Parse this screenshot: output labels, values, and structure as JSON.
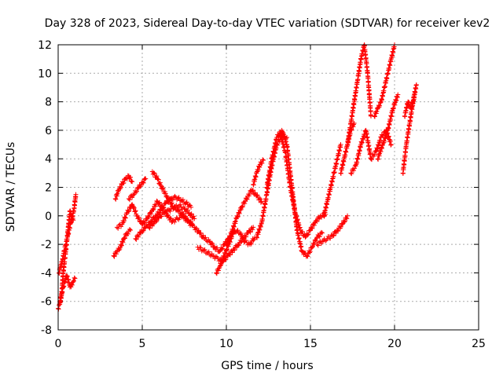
{
  "chart_data": {
    "type": "scatter",
    "title": "Day 328 of 2023, Sidereal Day-to-day VTEC variation (SDTVAR) for receiver kev2",
    "xlabel": "GPS time / hours",
    "ylabel": "SDTVAR / TECUs",
    "xlim": [
      0,
      25
    ],
    "ylim": [
      -8,
      12
    ],
    "xticks": [
      0,
      5,
      10,
      15,
      20,
      25
    ],
    "yticks": [
      -8,
      -6,
      -4,
      -2,
      0,
      2,
      4,
      6,
      8,
      10,
      12
    ],
    "xtick_labels": [
      "0",
      "5",
      "10",
      "15",
      "20",
      "25"
    ],
    "ytick_labels": [
      "-8",
      "-6",
      "-4",
      "-2",
      "0",
      "2",
      "4",
      "6",
      "8",
      "10",
      "12"
    ],
    "grid": true,
    "marker": "+",
    "series": [
      {
        "name": "kev2",
        "color": "#ff0000",
        "tracks": [
          {
            "x": [
              0.0,
              0.1,
              0.2,
              0.3,
              0.4,
              0.5,
              0.6,
              0.7,
              0.8,
              0.9,
              1.0
            ],
            "y": [
              -6.5,
              -6.2,
              -5.5,
              -5.0,
              -4.6,
              -4.2,
              -4.5,
              -5.0,
              -4.8,
              -4.6,
              -4.4
            ]
          },
          {
            "x": [
              0.05,
              0.15,
              0.25,
              0.35,
              0.45,
              0.55,
              0.65,
              0.75,
              0.85,
              0.95,
              1.05
            ],
            "y": [
              -4.0,
              -3.5,
              -3.2,
              -2.5,
              -2.0,
              -1.5,
              -1.0,
              -0.5,
              0.0,
              0.5,
              1.5
            ]
          },
          {
            "x": [
              0.1,
              0.2,
              0.3,
              0.4,
              0.5,
              0.6,
              0.7,
              0.8,
              0.9
            ],
            "y": [
              -6.0,
              -5.6,
              -4.0,
              -3.0,
              -2.0,
              -0.8,
              0.3,
              0.0,
              -0.3
            ]
          },
          {
            "x": [
              3.3,
              3.5,
              3.7,
              3.9,
              4.1,
              4.3
            ],
            "y": [
              -2.8,
              -2.5,
              -2.2,
              -1.6,
              -1.2,
              -1.0
            ]
          },
          {
            "x": [
              3.4,
              3.6,
              3.8,
              4.0,
              4.2,
              4.4
            ],
            "y": [
              1.2,
              1.8,
              2.2,
              2.6,
              2.8,
              2.4
            ]
          },
          {
            "x": [
              3.5,
              3.8,
              4.1,
              4.4,
              4.7,
              5.0,
              5.3,
              5.6,
              5.9,
              6.2,
              6.5,
              6.8,
              7.1,
              7.4,
              7.7,
              8.0
            ],
            "y": [
              -0.8,
              -0.6,
              0.2,
              0.8,
              0.0,
              -0.6,
              -0.2,
              0.4,
              1.0,
              0.6,
              0.0,
              -0.4,
              -0.2,
              0.0,
              -0.4,
              -0.7
            ]
          },
          {
            "x": [
              4.6,
              4.9,
              5.2,
              5.5,
              5.8,
              6.1,
              6.4,
              6.7,
              7.0,
              7.3,
              7.6,
              7.9
            ],
            "y": [
              -1.6,
              -1.2,
              -0.8,
              -0.4,
              0.0,
              0.4,
              0.9,
              1.2,
              1.3,
              1.1,
              0.9,
              0.6
            ]
          },
          {
            "x": [
              4.2,
              4.5,
              4.8,
              5.0,
              5.2
            ],
            "y": [
              1.2,
              1.5,
              2.0,
              2.3,
              2.6
            ]
          },
          {
            "x": [
              5.6,
              5.9,
              6.2,
              6.5,
              6.8,
              7.1,
              7.4,
              7.7,
              8.0
            ],
            "y": [
              3.1,
              2.6,
              1.9,
              1.3,
              0.7,
              0.4,
              0.1,
              -0.3,
              -0.6
            ]
          },
          {
            "x": [
              5.4,
              5.7,
              6.0,
              6.3,
              6.6,
              6.9,
              7.2,
              7.5,
              7.8,
              8.1
            ],
            "y": [
              -0.8,
              -0.5,
              -0.1,
              0.2,
              0.4,
              0.6,
              0.7,
              0.5,
              0.2,
              -0.2
            ]
          },
          {
            "x": [
              8.1,
              8.4,
              8.7,
              9.0,
              9.3,
              9.6,
              9.9,
              10.2,
              10.5,
              10.8,
              11.1,
              11.4,
              11.7
            ],
            "y": [
              -0.8,
              -1.2,
              -1.6,
              -1.8,
              -2.2,
              -2.5,
              -2.0,
              -1.5,
              -1.0,
              -1.2,
              -1.8,
              -2.0,
              -1.5
            ]
          },
          {
            "x": [
              8.3,
              8.6,
              8.9,
              9.2,
              9.5,
              9.8,
              10.1,
              10.4,
              10.7,
              11.0,
              11.3,
              11.6
            ],
            "y": [
              -2.2,
              -2.4,
              -2.6,
              -2.8,
              -3.0,
              -3.2,
              -2.8,
              -2.4,
              -2.0,
              -1.6,
              -1.2,
              -0.8
            ]
          },
          {
            "x": [
              9.4,
              9.6,
              9.8,
              10.0,
              10.2,
              10.4
            ],
            "y": [
              -4.0,
              -3.6,
              -3.0,
              -2.4,
              -1.8,
              -1.2
            ]
          },
          {
            "x": [
              10.0,
              10.3,
              10.6,
              10.9,
              11.2,
              11.5,
              11.8,
              12.1
            ],
            "y": [
              -2.0,
              -1.2,
              -0.2,
              0.6,
              1.2,
              1.8,
              1.4,
              1.0
            ]
          },
          {
            "x": [
              11.6,
              11.8,
              12.0,
              12.2
            ],
            "y": [
              2.2,
              3.0,
              3.6,
              3.9
            ]
          },
          {
            "x": [
              11.8,
              12.1,
              12.4,
              12.7,
              13.0,
              13.3,
              13.6
            ],
            "y": [
              -1.5,
              -0.5,
              1.5,
              3.5,
              5.0,
              5.6,
              5.5
            ]
          },
          {
            "x": [
              12.4,
              12.7,
              13.0,
              13.3,
              13.6,
              13.9,
              14.2,
              14.5,
              14.8,
              15.1,
              15.4,
              15.7
            ],
            "y": [
              2.0,
              4.0,
              5.5,
              6.0,
              5.0,
              2.0,
              -1.0,
              -2.5,
              -2.8,
              -2.2,
              -1.5,
              -1.2
            ]
          },
          {
            "x": [
              13.2,
              13.5,
              13.8,
              14.1,
              14.4,
              14.7,
              15.0,
              15.3,
              15.6,
              15.9
            ],
            "y": [
              5.8,
              4.5,
              2.0,
              0.2,
              -1.0,
              -1.5,
              -1.0,
              -0.4,
              0.0,
              0.1
            ]
          },
          {
            "x": [
              15.4,
              15.7,
              16.0,
              16.3,
              16.6,
              16.9,
              17.2
            ],
            "y": [
              -2.0,
              -1.8,
              -1.6,
              -1.4,
              -1.0,
              -0.6,
              0.0
            ]
          },
          {
            "x": [
              15.8,
              16.0,
              16.2,
              16.4,
              16.6,
              16.8
            ],
            "y": [
              0.0,
              1.0,
              2.0,
              3.0,
              4.0,
              5.0
            ]
          },
          {
            "x": [
              16.8,
              17.0,
              17.2,
              17.4,
              17.6
            ],
            "y": [
              3.0,
              4.0,
              5.0,
              6.0,
              6.5
            ]
          },
          {
            "x": [
              17.2,
              17.4,
              17.6,
              17.8,
              18.0,
              18.2,
              18.4,
              18.6
            ],
            "y": [
              5.0,
              6.5,
              8.0,
              9.5,
              11.0,
              12.0,
              10.0,
              7.0
            ]
          },
          {
            "x": [
              17.4,
              17.7,
              18.0,
              18.3,
              18.6,
              18.9,
              19.2,
              19.5,
              19.8
            ],
            "y": [
              3.0,
              3.5,
              5.0,
              6.0,
              4.0,
              4.5,
              5.5,
              6.0,
              5.0
            ]
          },
          {
            "x": [
              18.8,
              19.0,
              19.2,
              19.4,
              19.6,
              19.8,
              20.0
            ],
            "y": [
              7.0,
              7.5,
              8.0,
              9.0,
              10.0,
              11.0,
              12.0
            ]
          },
          {
            "x": [
              19.0,
              19.3,
              19.6,
              19.9,
              20.2
            ],
            "y": [
              4.0,
              5.0,
              6.0,
              7.5,
              8.5
            ]
          },
          {
            "x": [
              20.5,
              20.7,
              20.9,
              21.1,
              21.3
            ],
            "y": [
              3.0,
              5.0,
              6.5,
              8.0,
              9.2
            ]
          },
          {
            "x": [
              20.6,
              20.8,
              21.0,
              21.2
            ],
            "y": [
              7.0,
              8.0,
              7.5,
              8.5
            ]
          }
        ]
      }
    ]
  }
}
